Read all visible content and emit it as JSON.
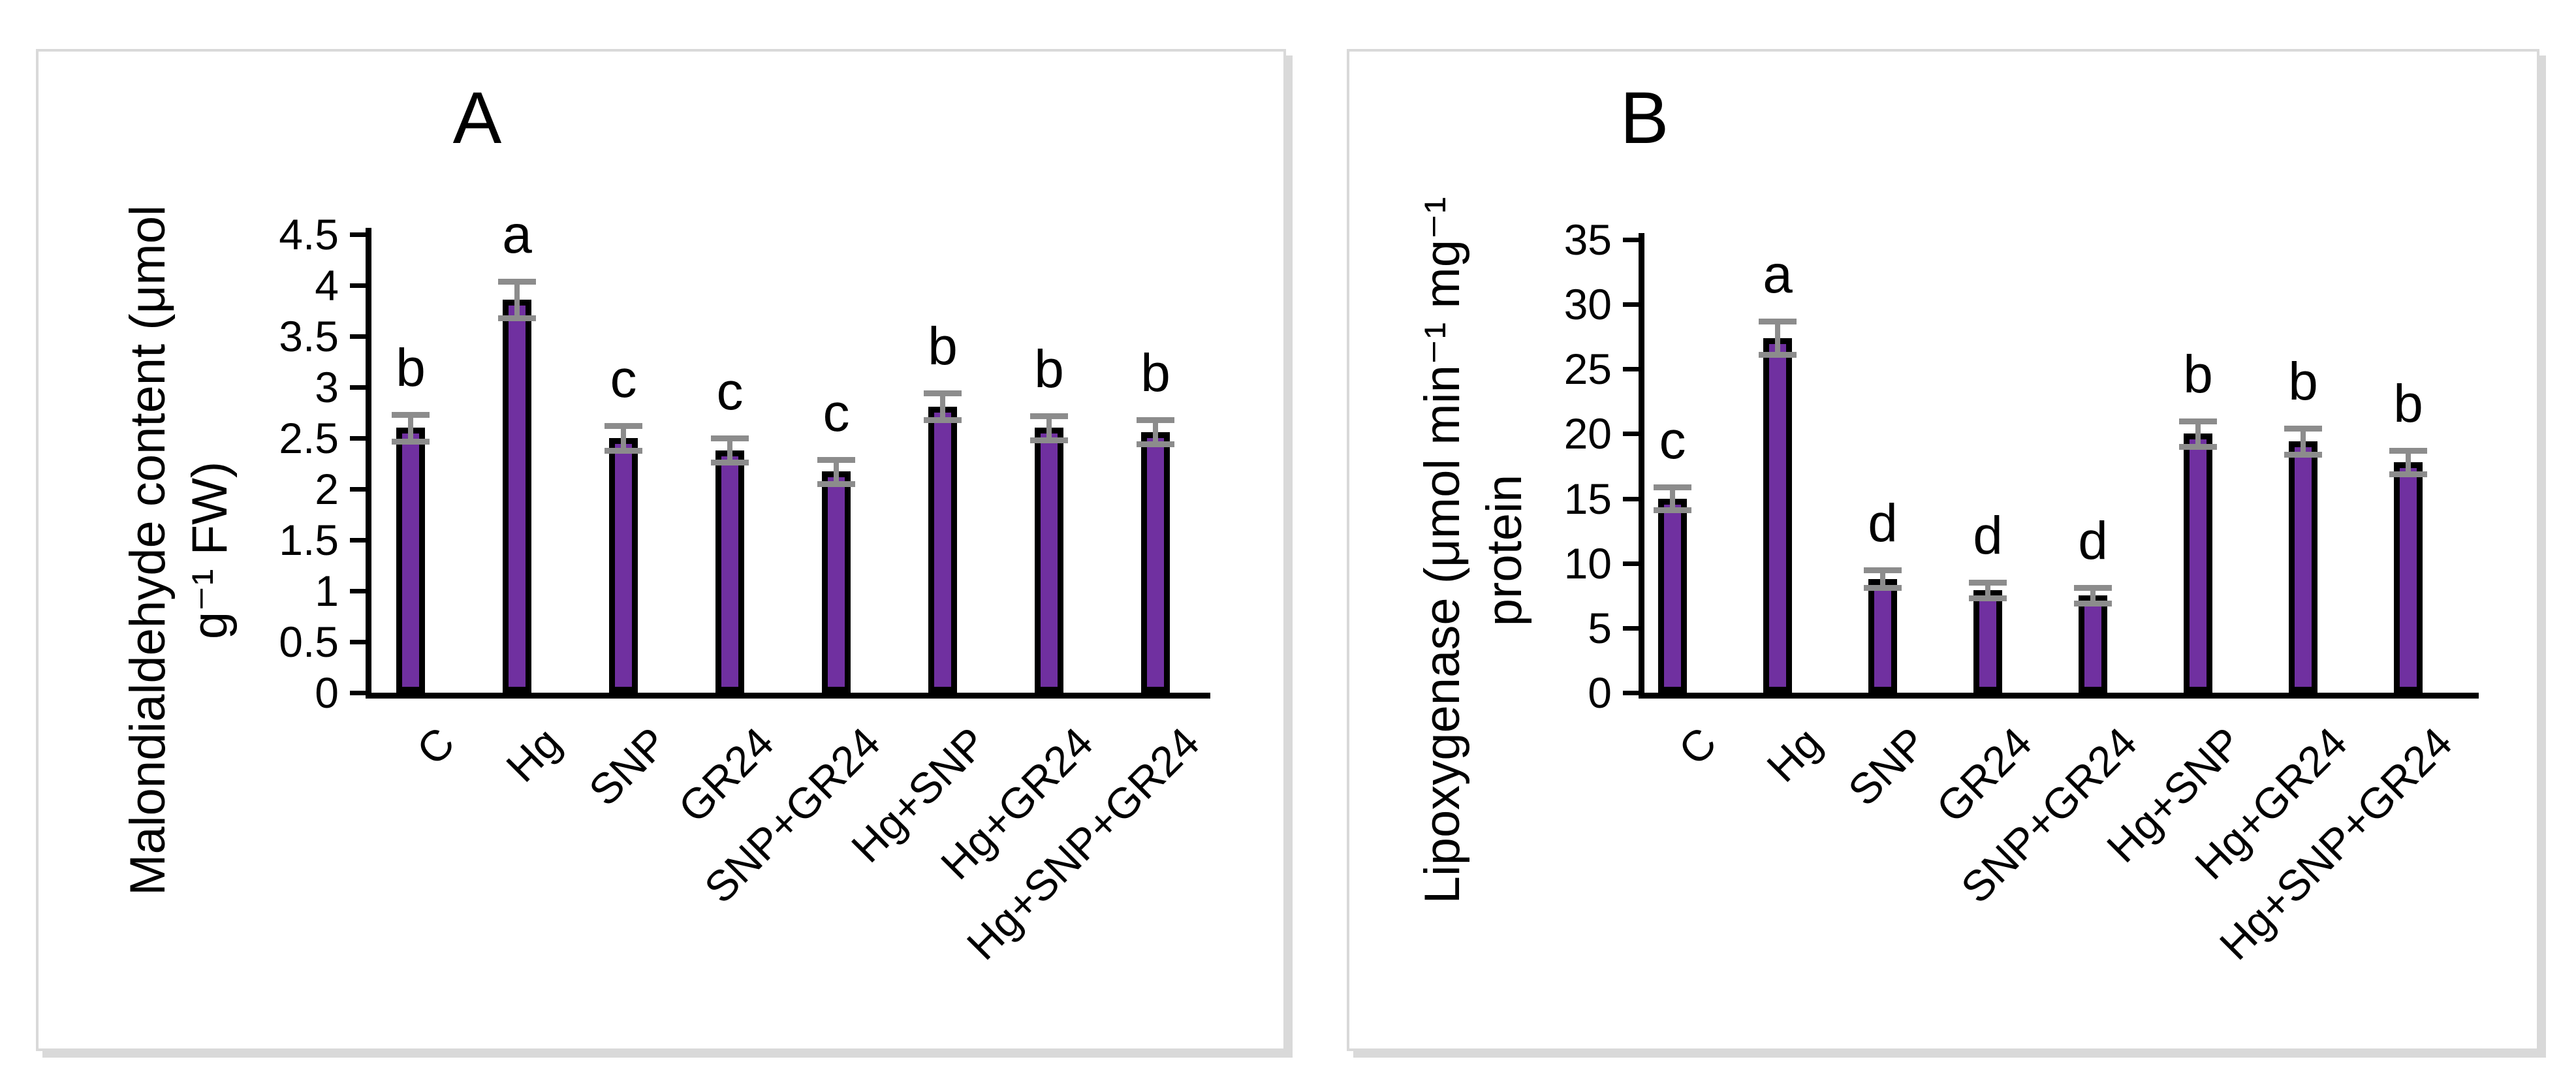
{
  "figure": {
    "panels": [
      {
        "label": "A",
        "y_axis_title_line1": "Malondialdehyde content (μmol",
        "y_axis_title_line2": "g⁻¹ FW)"
      },
      {
        "label": "B",
        "y_axis_title_line1": "Lipoxygenase (μmol min⁻¹ mg⁻¹",
        "y_axis_title_line2": "protein"
      }
    ]
  },
  "colors": {
    "bar_fill": "#7030A0",
    "bar_outline": "#000000",
    "error_bar": "#8C8C8C",
    "axis": "#000000",
    "panel_border": "#d9d9d9",
    "text": "#000000"
  },
  "chart_data": [
    {
      "type": "bar",
      "title": "A",
      "categories": [
        "C",
        "Hg",
        "SNP",
        "GR24",
        "SNP+GR24",
        "Hg+SNP",
        "Hg+GR24",
        "Hg+SNP+GR24"
      ],
      "values": [
        2.6,
        3.86,
        2.5,
        2.38,
        2.17,
        2.81,
        2.6,
        2.56
      ],
      "errors": [
        0.13,
        0.18,
        0.12,
        0.12,
        0.12,
        0.13,
        0.12,
        0.12
      ],
      "sig_letters": [
        "b",
        "a",
        "c",
        "c",
        "c",
        "b",
        "b",
        "b"
      ],
      "xlabel": "",
      "ylabel": "Malondialdehyde content (μmol g⁻¹ FW)",
      "ylim": [
        0,
        4.5
      ],
      "ytick_step": 0.5,
      "grid": false,
      "legend": "none"
    },
    {
      "type": "bar",
      "title": "B",
      "categories": [
        "C",
        "Hg",
        "SNP",
        "GR24",
        "SNP+GR24",
        "Hg+SNP",
        "Hg+GR24",
        "Hg+SNP+GR24"
      ],
      "values": [
        15.0,
        27.4,
        8.8,
        7.9,
        7.5,
        20.0,
        19.4,
        17.8
      ],
      "errors": [
        0.9,
        1.3,
        0.7,
        0.6,
        0.6,
        1.0,
        1.0,
        0.9
      ],
      "sig_letters": [
        "c",
        "a",
        "d",
        "d",
        "d",
        "b",
        "b",
        "b"
      ],
      "xlabel": "",
      "ylabel": "Lipoxygenase (μmol min⁻¹ mg⁻¹ protein",
      "ylim": [
        0,
        35
      ],
      "ytick_step": 5,
      "grid": false,
      "legend": "none"
    }
  ]
}
